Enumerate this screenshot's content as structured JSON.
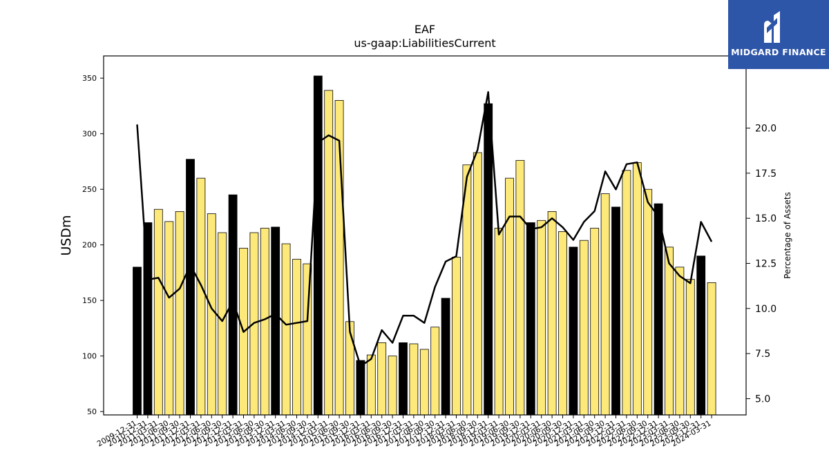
{
  "chart_data": {
    "type": "bar",
    "title": "EAF",
    "subtitle": "us-gaap:LiabilitiesCurrent",
    "ylabel": "USDm",
    "y2label": "Percentage of Assets",
    "ylim": [
      47,
      370
    ],
    "y2lim": [
      4.1,
      24.0
    ],
    "yticks": [
      50,
      100,
      150,
      200,
      250,
      300,
      350
    ],
    "y2ticks": [
      5.0,
      7.5,
      10.0,
      12.5,
      15.0,
      17.5,
      20.0
    ],
    "y2tick_labels": [
      "5.0",
      "7.5",
      "10.0",
      "12.5",
      "15.0",
      "17.5",
      "20.0"
    ],
    "colors": {
      "annual": "#000000",
      "quarterly": "#fde97a",
      "line": "#000000"
    },
    "categories": [
      "2009-12-31",
      "2010-12-31",
      "2011-03-31",
      "2011-06-30",
      "2011-09-30",
      "2011-12-31",
      "2012-03-31",
      "2012-06-30",
      "2012-09-30",
      "2012-12-31",
      "2013-03-31",
      "2013-06-30",
      "2013-09-30",
      "2013-12-31",
      "2014-03-31",
      "2014-06-30",
      "2014-09-30",
      "2014-12-31",
      "2015-03-31",
      "2015-06-30",
      "2015-09-30",
      "2015-12-31",
      "2016-03-31",
      "2016-06-30",
      "2016-09-30",
      "2016-12-31",
      "2017-03-31",
      "2017-06-30",
      "2017-09-30",
      "2017-12-31",
      "2018-03-31",
      "2018-06-30",
      "2018-09-30",
      "2018-12-31",
      "2019-03-31",
      "2019-06-30",
      "2019-09-30",
      "2019-12-31",
      "2020-03-31",
      "2020-06-30",
      "2020-09-30",
      "2020-12-31",
      "2021-03-31",
      "2021-06-30",
      "2021-09-30",
      "2021-12-31",
      "2022-03-31",
      "2022-06-30",
      "2022-09-30",
      "2022-12-31",
      "2023-03-31",
      "2023-06-30",
      "2023-09-30",
      "2023-12-31",
      "2024-03-31"
    ],
    "tick_labels": [
      "2009-12-31",
      "2010-12-31",
      "2011-03-31",
      "2011-06-30",
      "2011-09-30",
      "2011-12-31",
      "2012-03-31",
      "2012-06-30",
      "2012-09-30",
      "2012-12-31",
      "2013-03-31",
      "2013-06-30",
      "2013-09-30",
      "2013-12-31",
      "2014-03-31",
      "2014-06-30",
      "2014-09-30",
      "2014-12-31",
      "2015-03-31",
      "2015-06-30",
      "2015-09-30",
      "2015-12-31",
      "2016-03-31",
      "2016-06-30",
      "2016-09-30",
      "2016-12-31",
      "2017-03-31",
      "2017-06-30",
      "2017-09-30",
      "2017-12-31",
      "2018-03-31",
      "2018-06-30",
      "2018-09-30",
      "2018-12-31",
      "2019-03-31",
      "2019-06-30",
      "2019-09-30",
      "2019-12-31",
      "2020-03-31",
      "2020-06-30",
      "2020-09-30",
      "2020-12-31",
      "2021-03-31",
      "2021-06-30",
      "2021-09-30",
      "2021-12-31",
      "2022-03-31",
      "2022-06-30",
      "2022-09-30",
      "2022-12-31",
      "2023-03-31",
      "2023-06-30",
      "2023-09-30",
      "2023-12-31",
      "2024-03-31"
    ],
    "series": [
      {
        "values": [
          180,
          220,
          232,
          221,
          230,
          277,
          260,
          228,
          211,
          245,
          197,
          211,
          215,
          216,
          201,
          187,
          183,
          352,
          339,
          330,
          131,
          96,
          101,
          112,
          100,
          112,
          111,
          106,
          126,
          152,
          189,
          272,
          283,
          327,
          215,
          260,
          276,
          220,
          222,
          230,
          212,
          198,
          204,
          215,
          246,
          234,
          267,
          274,
          250,
          237,
          198,
          180,
          169,
          190,
          166
        ],
        "annual": [
          true,
          true,
          false,
          false,
          false,
          true,
          false,
          false,
          false,
          true,
          false,
          false,
          false,
          true,
          false,
          false,
          false,
          true,
          false,
          false,
          false,
          true,
          false,
          false,
          false,
          true,
          false,
          false,
          false,
          true,
          false,
          false,
          false,
          true,
          false,
          false,
          false,
          true,
          false,
          false,
          false,
          true,
          false,
          false,
          false,
          true,
          false,
          false,
          false,
          true,
          false,
          false,
          false,
          true,
          false
        ]
      },
      {
        "axis": "right",
        "values": [
          20.2,
          11.6,
          11.7,
          10.6,
          11.1,
          12.4,
          11.3,
          10.0,
          9.3,
          10.4,
          8.7,
          9.2,
          9.4,
          9.7,
          9.1,
          9.2,
          9.3,
          19.2,
          19.6,
          19.3,
          8.7,
          6.8,
          7.2,
          8.8,
          8.1,
          9.6,
          9.6,
          9.2,
          11.2,
          12.6,
          12.9,
          17.3,
          18.8,
          22.0,
          14.1,
          15.1,
          15.1,
          14.4,
          14.5,
          15.0,
          14.5,
          13.8,
          14.8,
          15.4,
          17.6,
          16.6,
          18.0,
          18.1,
          15.9,
          15.1,
          12.5,
          11.8,
          11.4,
          14.8,
          13.7
        ]
      }
    ]
  },
  "logo": {
    "text": "MIDGARD FINANCE"
  }
}
